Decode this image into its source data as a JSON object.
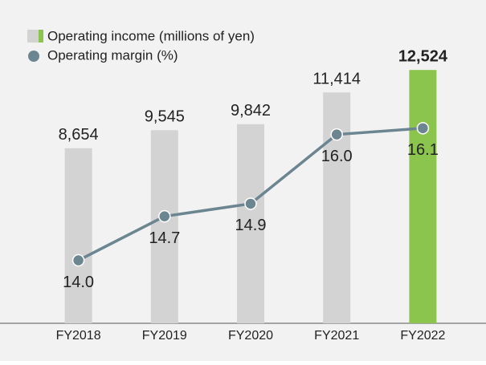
{
  "chart_data": {
    "type": "bar+line",
    "categories": [
      "FY2018",
      "FY2019",
      "FY2020",
      "FY2021",
      "FY2022"
    ],
    "series": [
      {
        "name": "Operating income (millions of yen)",
        "type": "bar",
        "color": "#d3d3d3",
        "colors": [
          "#d3d3d3",
          "#d3d3d3",
          "#d3d3d3",
          "#d3d3d3",
          "#8cc54e"
        ],
        "values": [
          8654,
          9545,
          9842,
          11414,
          12524
        ],
        "value_labels": [
          "8,654",
          "9,545",
          "9,842",
          "11,414",
          "12,524"
        ]
      },
      {
        "name": "Operating margin (%)",
        "type": "line",
        "axis": "y2",
        "color": "#6b8591",
        "values": [
          14.0,
          14.7,
          14.9,
          16.0,
          16.1
        ],
        "value_labels": [
          "14.0",
          "14.7",
          "14.9",
          "16.0",
          "16.1"
        ]
      }
    ],
    "highlight": 4,
    "ylim": [
      0,
      14000
    ],
    "y2lim": [
      13,
      17.5
    ],
    "legend": "top-left"
  }
}
